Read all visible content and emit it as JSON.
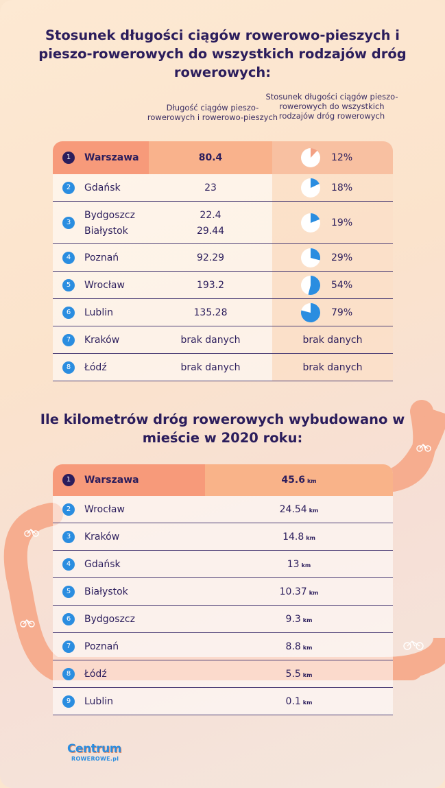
{
  "chart_data": [
    {
      "type": "table",
      "title": "Stosunek długości ciągów rowerowo-pieszych i pieszo-rowerowych do wszystkich rodzajów dróg rowerowych:",
      "columns": [
        "Długość ciągów pieszo-rowerowych i rowerowo-pieszych",
        "Stosunek długości ciągów pieszo-rowerowych do wszystkich rodzajów dróg rowerowych"
      ],
      "rows": [
        {
          "rank": "1",
          "cities": [
            "Warszawa"
          ],
          "values": [
            "80.4"
          ],
          "share": 12,
          "share_label": "12%"
        },
        {
          "rank": "2",
          "cities": [
            "Gdańsk"
          ],
          "values": [
            "23"
          ],
          "share": 18,
          "share_label": "18%"
        },
        {
          "rank": "3",
          "cities": [
            "Bydgoszcz",
            "Białystok"
          ],
          "values": [
            "22.4",
            "29.44"
          ],
          "share": 19,
          "share_label": "19%"
        },
        {
          "rank": "4",
          "cities": [
            "Poznań"
          ],
          "values": [
            "92.29"
          ],
          "share": 29,
          "share_label": "29%"
        },
        {
          "rank": "5",
          "cities": [
            "Wrocław"
          ],
          "values": [
            "193.2"
          ],
          "share": 54,
          "share_label": "54%"
        },
        {
          "rank": "6",
          "cities": [
            "Lublin"
          ],
          "values": [
            "135.28"
          ],
          "share": 79,
          "share_label": "79%"
        },
        {
          "rank": "7",
          "cities": [
            "Kraków"
          ],
          "values": [
            "brak danych"
          ],
          "share": null,
          "share_label": "brak danych"
        },
        {
          "rank": "8",
          "cities": [
            "Łódź"
          ],
          "values": [
            "brak danych"
          ],
          "share": null,
          "share_label": "brak danych"
        }
      ]
    },
    {
      "type": "table",
      "title": "Ile kilometrów dróg rowerowych wybudowano w mieście w 2020 roku:",
      "unit": "km",
      "rows": [
        {
          "rank": "1",
          "city": "Warszawa",
          "value": "45.6"
        },
        {
          "rank": "2",
          "city": "Wrocław",
          "value": "24.54"
        },
        {
          "rank": "3",
          "city": "Kraków",
          "value": "14.8"
        },
        {
          "rank": "4",
          "city": "Gdańsk",
          "value": "13"
        },
        {
          "rank": "5",
          "city": "Białystok",
          "value": "10.37"
        },
        {
          "rank": "6",
          "city": "Bydgoszcz",
          "value": "9.3"
        },
        {
          "rank": "7",
          "city": "Poznań",
          "value": "8.8"
        },
        {
          "rank": "8",
          "city": "Łódź",
          "value": "5.5"
        },
        {
          "rank": "9",
          "city": "Lublin",
          "value": "0.1"
        }
      ]
    }
  ],
  "headings": {
    "title1": "Stosunek długości ciągów rowerowo-pieszych i pieszo-rowerowych do wszystkich rodzajów dróg rowerowych:",
    "col1": "Długość ciągów pieszo-rowerowych i rowerowo-pieszych",
    "col2": "Stosunek długości ciągów pieszo-rowerowych do wszystkich rodzajów dróg rowerowych",
    "title2": "Ile kilometrów dróg rowerowych wybudowano w mieście w 2020 roku:"
  },
  "logo": {
    "line1": "Centrum",
    "line2": "ROWEROWE.pl"
  },
  "colors": {
    "navy": "#2b1d5c",
    "blue": "#2a8de0",
    "salmon": "#f79a7a",
    "peach": "#f9b28c",
    "road": "#f6a98a"
  },
  "icons": [
    "bicycle-icon"
  ]
}
